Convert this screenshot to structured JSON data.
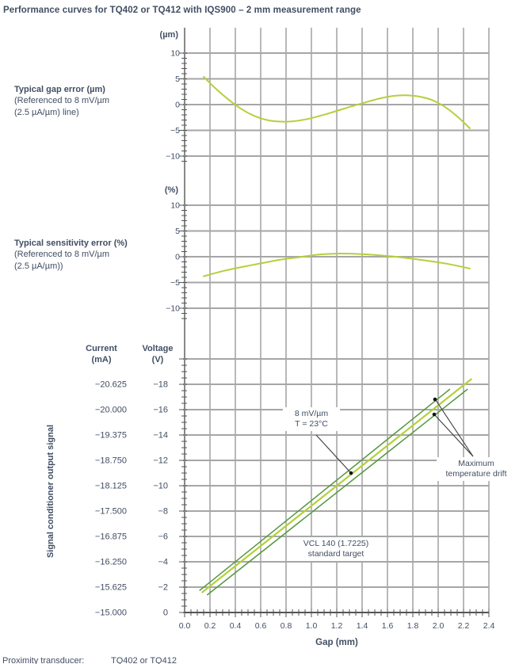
{
  "title": "Performance curves for TQ402 or TQ412 with IQS900 – 2 mm measurement range",
  "footer": {
    "label": "Proximity transducer:",
    "value": "TQ402 or TQ412"
  },
  "colors": {
    "text": "#414e63",
    "curve_yellow_green": "#b4d03c",
    "drift_dark_green": "#55973f",
    "grid_vertical": "#707070",
    "grid_horizontal": "#a6a6a6",
    "axis": "#555555",
    "annotation_line": "#3c3c3c",
    "dot": "#111111"
  },
  "side_labels": {
    "gap_error": {
      "title": "Typical gap error (µm)",
      "ref1": "(Referenced to 8 mV/µm",
      "ref2": "(2.5 µA/µm) line)"
    },
    "sensitivity_error": {
      "title": "Typical sensitivity error (%)",
      "ref1": "(Referenced to 8 mV/µm",
      "ref2": "(2.5 µA/µm))"
    },
    "output_signal": {
      "current_header": "Current",
      "current_unit": "(mA)",
      "voltage_header": "Voltage",
      "voltage_unit": "(V)",
      "axis_title": "Signal conditioner output signal"
    }
  },
  "chart_data": [
    {
      "id": "gap-error",
      "type": "line",
      "title": "Typical gap error (µm)",
      "subtitle": "(Referenced to 8 mV/µm (2.5 µA/µm) line)",
      "unit": "(µm)",
      "xlim": [
        0,
        2.4
      ],
      "ylim": [
        -12,
        15
      ],
      "yticks": [
        10,
        5,
        0,
        -5,
        -10
      ],
      "ytick_labels": [
        "10",
        "5",
        "0",
        "−5",
        "−10"
      ],
      "grid": true,
      "series": [
        {
          "name": "typical gap error",
          "color": "#b4d03c",
          "points": [
            [
              0.15,
              5.4
            ],
            [
              0.25,
              3.0
            ],
            [
              0.35,
              0.9
            ],
            [
              0.45,
              -0.9
            ],
            [
              0.55,
              -2.2
            ],
            [
              0.65,
              -3.0
            ],
            [
              0.75,
              -3.3
            ],
            [
              0.85,
              -3.25
            ],
            [
              0.95,
              -2.9
            ],
            [
              1.05,
              -2.3
            ],
            [
              1.15,
              -1.6
            ],
            [
              1.25,
              -0.85
            ],
            [
              1.35,
              -0.1
            ],
            [
              1.45,
              0.6
            ],
            [
              1.55,
              1.25
            ],
            [
              1.65,
              1.7
            ],
            [
              1.75,
              1.8
            ],
            [
              1.85,
              1.55
            ],
            [
              1.95,
              0.9
            ],
            [
              2.05,
              -0.4
            ],
            [
              2.15,
              -2.3
            ],
            [
              2.25,
              -4.6
            ]
          ]
        }
      ]
    },
    {
      "id": "sensitivity-error",
      "type": "line",
      "title": "Typical sensitivity error (%)",
      "subtitle": "(Referenced to 8 mV/µm (2.5 µA/µm))",
      "unit": "(%)",
      "xlim": [
        0,
        2.4
      ],
      "ylim": [
        -13,
        14
      ],
      "yticks": [
        10,
        5,
        0,
        -5,
        -10
      ],
      "ytick_labels": [
        "10",
        "5",
        "0",
        "−5",
        "−10"
      ],
      "grid": true,
      "series": [
        {
          "name": "typical sensitivity error",
          "color": "#b4d03c",
          "points": [
            [
              0.15,
              -3.8
            ],
            [
              0.3,
              -2.8
            ],
            [
              0.45,
              -2.0
            ],
            [
              0.6,
              -1.3
            ],
            [
              0.75,
              -0.6
            ],
            [
              0.9,
              -0.1
            ],
            [
              1.05,
              0.4
            ],
            [
              1.2,
              0.6
            ],
            [
              1.35,
              0.55
            ],
            [
              1.5,
              0.35
            ],
            [
              1.65,
              0.05
            ],
            [
              1.8,
              -0.4
            ],
            [
              1.95,
              -0.9
            ],
            [
              2.1,
              -1.5
            ],
            [
              2.25,
              -2.3
            ]
          ]
        }
      ]
    },
    {
      "id": "output-signal",
      "type": "line",
      "title": "Signal conditioner output signal",
      "xlabel": "Gap (mm)",
      "xlim": [
        0,
        2.4
      ],
      "xticks": [
        0.0,
        0.2,
        0.4,
        0.6,
        0.8,
        1.0,
        1.2,
        1.4,
        1.6,
        1.8,
        2.0,
        2.2,
        2.4
      ],
      "xtick_labels": [
        "0.0",
        "0.2",
        "0.4",
        "0.6",
        "0.8",
        "1.0",
        "1.2",
        "1.4",
        "1.6",
        "1.8",
        "2.0",
        "2.2",
        "2.4"
      ],
      "voltage_axis": {
        "header": "Voltage (V)",
        "ticks": [
          -18,
          -16,
          -14,
          -12,
          -10,
          -8,
          -6,
          -4,
          -2,
          0
        ],
        "tick_labels": [
          "−18",
          "−16",
          "−14",
          "−12",
          "−10",
          "−8",
          "−6",
          "−4",
          "−2",
          "0"
        ]
      },
      "current_axis": {
        "header": "Current (mA)",
        "tick_labels": [
          "−20.625",
          "−20.000",
          "−19.375",
          "−18.750",
          "−18.125",
          "−17.500",
          "−16.875",
          "−16.250",
          "−15.625",
          "−15.000"
        ]
      },
      "extra_gridline_voltages": [
        -20
      ],
      "grid": true,
      "series": [
        {
          "name": "8 mV/µm reference line, T = 23°C",
          "color": "#b4d03c",
          "width": 2.2,
          "points": [
            [
              0.14,
              -1.6
            ],
            [
              2.26,
              -18.4
            ]
          ]
        },
        {
          "name": "maximum temperature drift (upper bound)",
          "color": "#55973f",
          "width": 1.5,
          "points": [
            [
              0.12,
              -1.75
            ],
            [
              2.09,
              -17.6
            ]
          ]
        },
        {
          "name": "maximum temperature drift (lower bound)",
          "color": "#55973f",
          "width": 1.5,
          "points": [
            [
              0.18,
              -1.4
            ],
            [
              2.23,
              -17.6
            ]
          ]
        }
      ],
      "annotations": [
        {
          "id": "reference-label",
          "lines": [
            "8 mV/µm",
            "T = 23°C"
          ]
        },
        {
          "id": "drift-label",
          "lines": [
            "Maximum",
            "temperature drift"
          ]
        },
        {
          "id": "target-label",
          "lines": [
            "VCL 140 (1.7225)",
            "standard target"
          ]
        }
      ]
    }
  ]
}
